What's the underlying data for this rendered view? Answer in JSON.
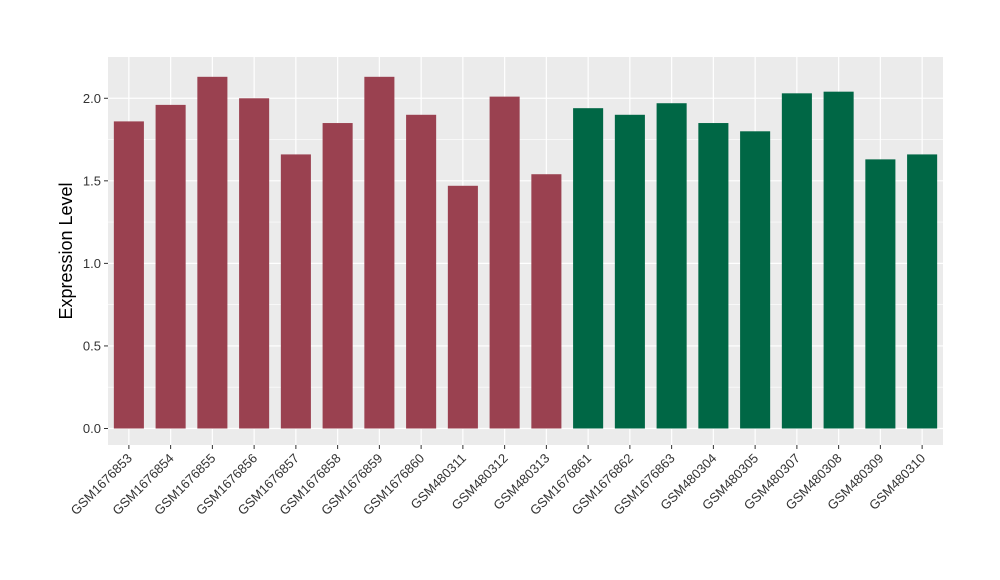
{
  "chart_data": {
    "type": "bar",
    "title": "",
    "xlabel": "",
    "ylabel": "Expression Level",
    "ylim": [
      -0.1,
      2.25
    ],
    "yticks": [
      0.0,
      0.5,
      1.0,
      1.5,
      2.0
    ],
    "ytick_labels": [
      "0.0",
      "0.5",
      "1.0",
      "1.5",
      "2.0"
    ],
    "grid": true,
    "legend": "none",
    "categories": [
      "GSM1676853",
      "GSM1676854",
      "GSM1676855",
      "GSM1676856",
      "GSM1676857",
      "GSM1676858",
      "GSM1676859",
      "GSM1676860",
      "GSM480311",
      "GSM480312",
      "GSM480313",
      "GSM1676861",
      "GSM1676862",
      "GSM1676863",
      "GSM480304",
      "GSM480305",
      "GSM480307",
      "GSM480308",
      "GSM480309",
      "GSM480310"
    ],
    "values": [
      1.86,
      1.96,
      2.13,
      2.0,
      1.66,
      1.85,
      2.13,
      1.9,
      1.47,
      2.01,
      1.54,
      1.94,
      1.9,
      1.97,
      1.85,
      1.8,
      2.03,
      2.04,
      1.63,
      1.66
    ],
    "groups": [
      0,
      0,
      0,
      0,
      0,
      0,
      0,
      0,
      0,
      0,
      0,
      1,
      1,
      1,
      1,
      1,
      1,
      1,
      1,
      1
    ],
    "group_colors": [
      "#9a4150",
      "#006745"
    ],
    "panel_color": "#ebebeb",
    "grid_color": "#ffffff"
  }
}
